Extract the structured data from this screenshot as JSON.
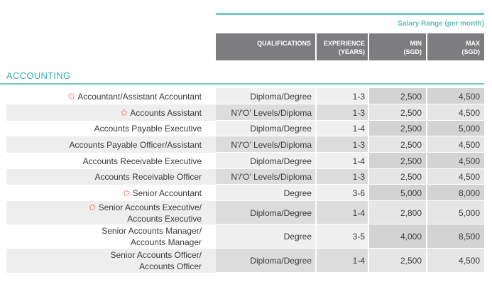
{
  "header": {
    "salary_range_title": "Salary Range (per month)",
    "col_qualifications": "QUALIFICATIONS",
    "col_experience_l1": "EXPERIENCE",
    "col_experience_l2": "(YEARS)",
    "col_min_l1": "MIN",
    "col_min_l2": "(SGD)",
    "col_max_l1": "MAX",
    "col_max_l2": "(SGD)"
  },
  "section": {
    "title": "ACCOUNTING"
  },
  "rows": [
    {
      "title1": "Accountant/Assistant Accountant",
      "title2": "",
      "star": true,
      "qualification": "Diploma/Degree",
      "experience": "1-3",
      "min": "2,500",
      "max": "4,500"
    },
    {
      "title1": "Accounts Assistant",
      "title2": "",
      "star": true,
      "qualification": "N'/'O' Levels/Diploma",
      "experience": "1-3",
      "min": "2,500",
      "max": "4,500"
    },
    {
      "title1": "Accounts Payable Executive",
      "title2": "",
      "star": false,
      "qualification": "Diploma/Degree",
      "experience": "1-4",
      "min": "2,500",
      "max": "5,000"
    },
    {
      "title1": "Accounts Payable Officer/Assistant",
      "title2": "",
      "star": false,
      "qualification": "N'/'O' Levels/Diploma",
      "experience": "1-3",
      "min": "2,500",
      "max": "4,500"
    },
    {
      "title1": "Accounts Receivable Executive",
      "title2": "",
      "star": false,
      "qualification": "Diploma/Degree",
      "experience": "1-4",
      "min": "2,500",
      "max": "4,500"
    },
    {
      "title1": "Accounts Receivable Officer",
      "title2": "",
      "star": false,
      "qualification": "N'/'O' Levels/Diploma",
      "experience": "1-3",
      "min": "2,500",
      "max": "4,500"
    },
    {
      "title1": "Senior Accountant",
      "title2": "",
      "star": true,
      "qualification": "Degree",
      "experience": "3-6",
      "min": "5,000",
      "max": "8,000"
    },
    {
      "title1": "Senior Accounts Executive/",
      "title2": "Accounts Executive",
      "star": true,
      "qualification": "Diploma/Degree",
      "experience": "1-4",
      "min": "2,800",
      "max": "5,000"
    },
    {
      "title1": "Senior Accounts Manager/",
      "title2": "Accounts Manager",
      "star": false,
      "qualification": "Degree",
      "experience": "3-5",
      "min": "4,000",
      "max": "8,500"
    },
    {
      "title1": "Senior Accounts Officer/",
      "title2": "Accounts Officer",
      "star": false,
      "qualification": "Diploma/Degree",
      "experience": "1-4",
      "min": "2,500",
      "max": "4,500"
    }
  ],
  "icons": {
    "star": "star-icon"
  },
  "colors": {
    "accent": "#5cbfb8",
    "header_bg": "#7d7d80",
    "star": "#e0605e"
  }
}
